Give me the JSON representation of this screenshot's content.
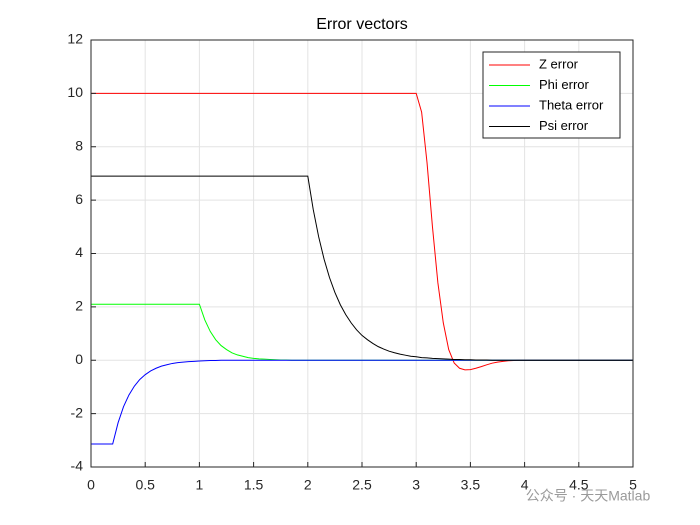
{
  "chart_data": {
    "type": "line",
    "title": "Error vectors",
    "x": [
      0,
      0.05,
      0.1,
      0.15,
      0.2,
      0.25,
      0.3,
      0.35,
      0.4,
      0.45,
      0.5,
      0.55,
      0.6,
      0.65,
      0.7,
      0.75,
      0.8,
      0.85,
      0.9,
      0.95,
      1,
      1.05,
      1.1,
      1.15,
      1.2,
      1.25,
      1.3,
      1.35,
      1.4,
      1.45,
      1.5,
      1.55,
      1.6,
      1.65,
      1.7,
      1.75,
      1.8,
      1.85,
      1.9,
      1.95,
      2,
      2.05,
      2.1,
      2.15,
      2.2,
      2.25,
      2.3,
      2.35,
      2.4,
      2.45,
      2.5,
      2.55,
      2.6,
      2.65,
      2.7,
      2.75,
      2.8,
      2.85,
      2.9,
      2.95,
      3,
      3.05,
      3.1,
      3.15,
      3.2,
      3.25,
      3.3,
      3.35,
      3.4,
      3.45,
      3.5,
      3.55,
      3.6,
      3.65,
      3.7,
      3.75,
      3.8,
      3.85,
      3.9,
      3.95,
      4,
      4.05,
      4.1,
      4.15,
      4.2,
      4.25,
      4.3,
      4.35,
      4.4,
      4.45,
      4.5,
      4.55,
      4.6,
      4.65,
      4.7,
      4.75,
      4.8,
      4.85,
      4.9,
      4.95,
      5
    ],
    "series": [
      {
        "name": "Z error",
        "color": "#ff0000",
        "values": [
          10,
          10,
          10,
          10,
          10,
          10,
          10,
          10,
          10,
          10,
          10,
          10,
          10,
          10,
          10,
          10,
          10,
          10,
          10,
          10,
          10,
          10,
          10,
          10,
          10,
          10,
          10,
          10,
          10,
          10,
          10,
          10,
          10,
          10,
          10,
          10,
          10,
          10,
          10,
          10,
          10,
          10,
          10,
          10,
          10,
          10,
          10,
          10,
          10,
          10,
          10,
          10,
          10,
          10,
          10,
          10,
          10,
          10,
          10,
          10,
          10,
          9.3,
          7.4,
          5.0,
          2.9,
          1.4,
          0.4,
          -0.1,
          -0.3,
          -0.36,
          -0.35,
          -0.3,
          -0.24,
          -0.17,
          -0.11,
          -0.07,
          -0.04,
          -0.02,
          -0.01,
          0,
          0,
          0,
          0,
          0,
          0,
          0,
          0,
          0,
          0,
          0,
          0,
          0,
          0,
          0,
          0,
          0,
          0,
          0,
          0,
          0,
          0
        ]
      },
      {
        "name": "Phi error",
        "color": "#00ff00",
        "values": [
          2.1,
          2.1,
          2.1,
          2.1,
          2.1,
          2.1,
          2.1,
          2.1,
          2.1,
          2.1,
          2.1,
          2.1,
          2.1,
          2.1,
          2.1,
          2.1,
          2.1,
          2.1,
          2.1,
          2.1,
          2.1,
          1.51,
          1.08,
          0.77,
          0.55,
          0.4,
          0.28,
          0.2,
          0.15,
          0.1,
          0.07,
          0.05,
          0.04,
          0.03,
          0.02,
          0.01,
          0.01,
          0,
          0,
          0,
          0,
          0,
          0,
          0,
          0,
          0,
          0,
          0,
          0,
          0,
          0,
          0,
          0,
          0,
          0,
          0,
          0,
          0,
          0,
          0,
          0,
          0,
          0,
          0,
          0,
          0,
          0,
          0,
          0,
          0,
          0,
          0,
          0,
          0,
          0,
          0,
          0,
          0,
          0,
          0,
          0,
          0,
          0,
          0,
          0,
          0,
          0,
          0,
          0,
          0,
          0,
          0,
          0,
          0,
          0,
          0,
          0,
          0,
          0,
          0,
          0
        ]
      },
      {
        "name": "Theta error",
        "color": "#0000ff",
        "values": [
          -3.14,
          -3.14,
          -3.14,
          -3.14,
          -3.14,
          -2.34,
          -1.74,
          -1.3,
          -0.97,
          -0.72,
          -0.54,
          -0.4,
          -0.3,
          -0.22,
          -0.17,
          -0.12,
          -0.09,
          -0.07,
          -0.05,
          -0.04,
          -0.03,
          -0.02,
          -0.01,
          -0.01,
          0,
          0,
          0,
          0,
          0,
          0,
          0,
          0,
          0,
          0,
          0,
          0,
          0,
          0,
          0,
          0,
          0,
          0,
          0,
          0,
          0,
          0,
          0,
          0,
          0,
          0,
          0,
          0,
          0,
          0,
          0,
          0,
          0,
          0,
          0,
          0,
          0,
          0,
          0,
          0,
          0,
          0,
          0,
          0,
          0,
          0,
          0,
          0,
          0,
          0,
          0,
          0,
          0,
          0,
          0,
          0,
          0,
          0,
          0,
          0,
          0,
          0,
          0,
          0,
          0,
          0,
          0,
          0,
          0,
          0,
          0,
          0,
          0,
          0,
          0,
          0,
          0
        ]
      },
      {
        "name": "Psi error",
        "color": "#000000",
        "values": [
          6.9,
          6.9,
          6.9,
          6.9,
          6.9,
          6.9,
          6.9,
          6.9,
          6.9,
          6.9,
          6.9,
          6.9,
          6.9,
          6.9,
          6.9,
          6.9,
          6.9,
          6.9,
          6.9,
          6.9,
          6.9,
          6.9,
          6.9,
          6.9,
          6.9,
          6.9,
          6.9,
          6.9,
          6.9,
          6.9,
          6.9,
          6.9,
          6.9,
          6.9,
          6.9,
          6.9,
          6.9,
          6.9,
          6.9,
          6.9,
          6.9,
          5.65,
          4.63,
          3.79,
          3.1,
          2.54,
          2.08,
          1.71,
          1.4,
          1.14,
          0.93,
          0.77,
          0.63,
          0.51,
          0.42,
          0.34,
          0.28,
          0.23,
          0.19,
          0.15,
          0.13,
          0.1,
          0.09,
          0.07,
          0.06,
          0.05,
          0.04,
          0.03,
          0.03,
          0.02,
          0.02,
          0.01,
          0.01,
          0.01,
          0,
          0,
          0,
          0,
          0,
          0,
          0,
          0,
          0,
          0,
          0,
          0,
          0,
          0,
          0,
          0,
          0,
          0,
          0,
          0,
          0,
          0,
          0,
          0,
          0,
          0,
          0
        ]
      }
    ],
    "xlim": [
      0,
      5
    ],
    "xticks": [
      0,
      0.5,
      1,
      1.5,
      2,
      2.5,
      3,
      3.5,
      4,
      4.5,
      5
    ],
    "ylim": [
      -4,
      12
    ],
    "yticks": [
      -4,
      -2,
      0,
      2,
      4,
      6,
      8,
      10,
      12
    ],
    "grid": true,
    "legend": "northeast",
    "watermark": "公众号 · 天天Matlab"
  }
}
